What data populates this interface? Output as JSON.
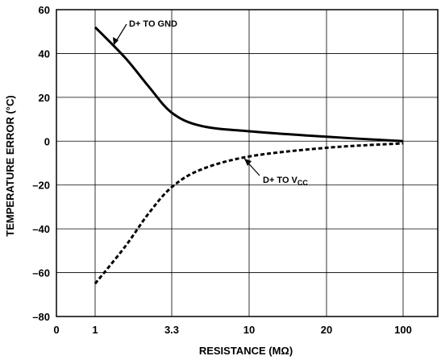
{
  "chart_data": {
    "type": "line",
    "title": "",
    "xlabel": "RESISTANCE (MΩ)",
    "ylabel": "TEMPERATURE ERROR (°C)",
    "x_tick_labels": [
      "0",
      "1",
      "3.3",
      "10",
      "20",
      "100"
    ],
    "y_ticks": [
      60,
      40,
      20,
      0,
      -20,
      -40,
      -60,
      -80
    ],
    "y_tick_labels": [
      "60",
      "40",
      "20",
      "0",
      "–20",
      "–40",
      "–60",
      "–80"
    ],
    "ylim": [
      -80,
      60
    ],
    "grid": true,
    "series": [
      {
        "name": "D+ TO GND",
        "style": "solid",
        "points": [
          {
            "x": "1",
            "y": 52
          },
          {
            "x": "1.6",
            "y": 38
          },
          {
            "x": "2.3",
            "y": 25
          },
          {
            "x": "3.3",
            "y": 13
          },
          {
            "x": "5",
            "y": 7
          },
          {
            "x": "10",
            "y": 4.5
          },
          {
            "x": "20",
            "y": 2
          },
          {
            "x": "100",
            "y": 0
          }
        ]
      },
      {
        "name": "D+ TO VCC",
        "style": "dashed",
        "points": [
          {
            "x": "1",
            "y": -65
          },
          {
            "x": "1.6",
            "y": -48
          },
          {
            "x": "2.3",
            "y": -33
          },
          {
            "x": "3.3",
            "y": -21
          },
          {
            "x": "5",
            "y": -13
          },
          {
            "x": "10",
            "y": -7
          },
          {
            "x": "20",
            "y": -3
          },
          {
            "x": "100",
            "y": -1
          }
        ]
      }
    ],
    "annotations": [
      {
        "series": "D+ TO GND",
        "text": "D+ TO GND"
      },
      {
        "series": "D+ TO VCC",
        "text_main": "D+ TO V",
        "text_sub": "CC"
      }
    ]
  }
}
